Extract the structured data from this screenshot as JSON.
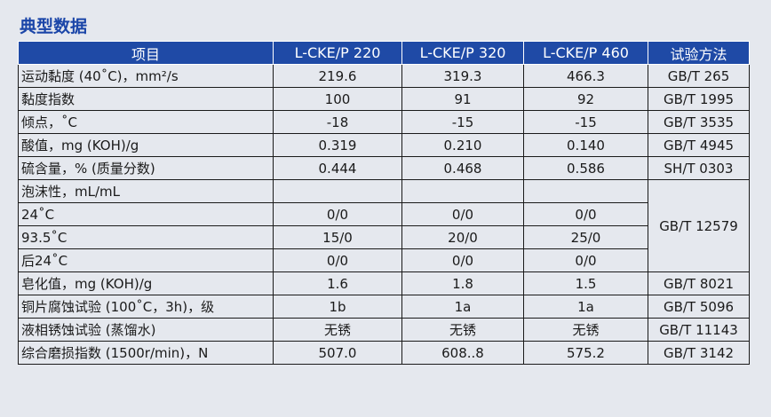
{
  "title": "典型数据",
  "headers": [
    "项目",
    "L-CKE/P 220",
    "L-CKE/P 320",
    "L-CKE/P 460",
    "试验方法"
  ],
  "rows": [
    {
      "name": "运动黏度 (40˚C)，mm²/s",
      "v1": "219.6",
      "v2": "319.3",
      "v3": "466.3",
      "method": "GB/T 265"
    },
    {
      "name": "黏度指数",
      "v1": "100",
      "v2": "91",
      "v3": "92",
      "method": "GB/T 1995"
    },
    {
      "name": "倾点，˚C",
      "v1": "-18",
      "v2": "-15",
      "v3": "-15",
      "method": "GB/T 3535"
    },
    {
      "name": "酸值，mg (KOH)/g",
      "v1": "0.319",
      "v2": "0.210",
      "v3": "0.140",
      "method": "GB/T 4945"
    },
    {
      "name": "硫含量，% (质量分数)",
      "v1": "0.444",
      "v2": "0.468",
      "v3": "0.586",
      "method": "SH/T 0303"
    }
  ],
  "foam": {
    "name": "泡沫性，mL/mL",
    "method": "GB/T 12579",
    "rows": [
      {
        "name": "24˚C",
        "v1": "0/0",
        "v2": "0/0",
        "v3": "0/0"
      },
      {
        "name": "93.5˚C",
        "v1": "15/0",
        "v2": "20/0",
        "v3": "25/0"
      },
      {
        "name": "后24˚C",
        "v1": "0/0",
        "v2": "0/0",
        "v3": "0/0"
      }
    ]
  },
  "rows2": [
    {
      "name": "皂化值，mg (KOH)/g",
      "v1": "1.6",
      "v2": "1.8",
      "v3": "1.5",
      "method": "GB/T 8021"
    },
    {
      "name": "铜片腐蚀试验 (100˚C，3h)，级",
      "v1": "1b",
      "v2": "1a",
      "v3": "1a",
      "method": "GB/T 5096"
    },
    {
      "name": "液相锈蚀试验 (蒸馏水)",
      "v1": "无锈",
      "v2": "无锈",
      "v3": "无锈",
      "method": "GB/T 11143"
    },
    {
      "name": "综合磨损指数 (1500r/min)，N",
      "v1": "507.0",
      "v2": "608..8",
      "v3": "575.2",
      "method": "GB/T 3142"
    }
  ]
}
